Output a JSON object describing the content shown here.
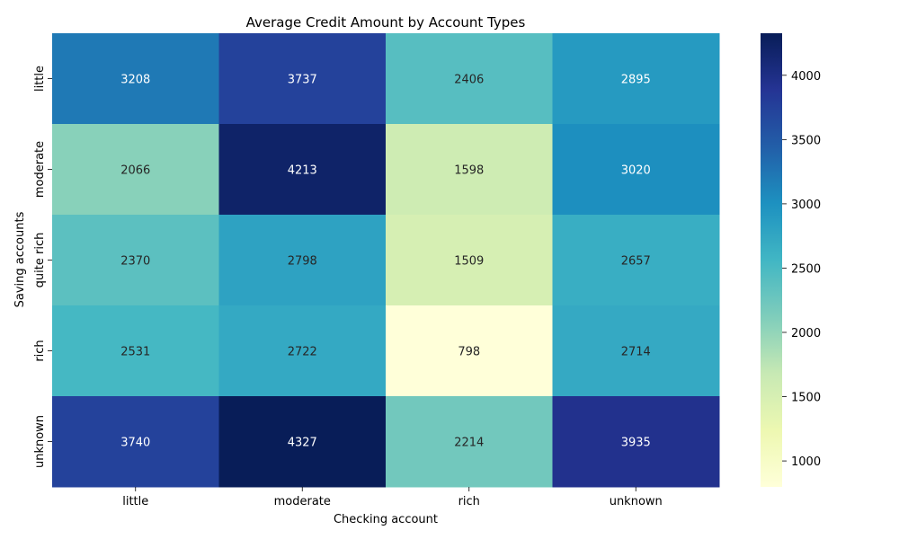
{
  "chart_data": {
    "type": "heatmap",
    "title": "Average Credit Amount by Account Types",
    "xlabel": "Checking account",
    "ylabel": "Saving accounts",
    "x_categories": [
      "little",
      "moderate",
      "rich",
      "unknown"
    ],
    "y_categories": [
      "little",
      "moderate",
      "quite rich",
      "rich",
      "unknown"
    ],
    "values": [
      [
        3208,
        3737,
        2406,
        2895
      ],
      [
        2066,
        4213,
        1598,
        3020
      ],
      [
        2370,
        2798,
        1509,
        2657
      ],
      [
        2531,
        2722,
        798,
        2714
      ],
      [
        3740,
        4327,
        2214,
        3935
      ]
    ],
    "colorbar": {
      "colormap": "YlGnBu",
      "range": [
        798,
        4327
      ],
      "ticks": [
        1000,
        1500,
        2000,
        2500,
        3000,
        3500,
        4000
      ]
    },
    "grid": false,
    "annotations": true
  }
}
